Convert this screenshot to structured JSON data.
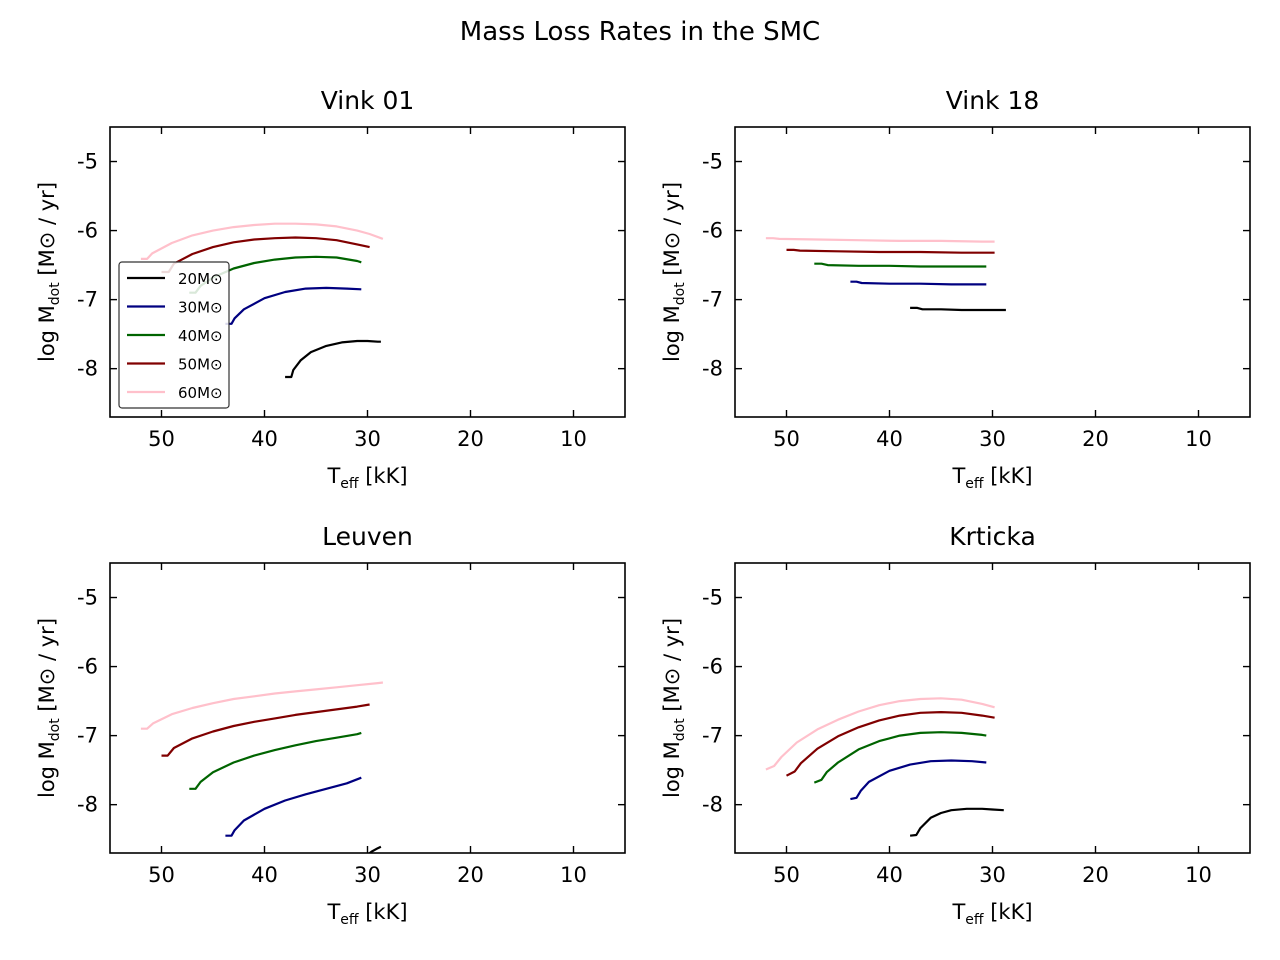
{
  "title": "Mass Loss Rates in the SMC",
  "axis_text": {
    "xlabel_main": "T",
    "xlabel_sub": "eff",
    "xlabel_unit": " [kK]",
    "ylabel_main": "log M",
    "ylabel_sub": "dot",
    "ylabel_unit": " [M⊙ / yr]"
  },
  "chart_data": [
    {
      "type": "line",
      "title": "Vink 01",
      "xlim": [
        55,
        5
      ],
      "ylim": [
        -8.7,
        -4.5
      ],
      "xticks": [
        50,
        40,
        30,
        20,
        10
      ],
      "yticks": [
        -5,
        -6,
        -7,
        -8
      ],
      "legend": "center-left",
      "series": [
        {
          "name": "20M⊙",
          "color": "#000000",
          "x": [
            38.0,
            37.4,
            37.2,
            36.5,
            35.5,
            34.0,
            32.5,
            31.0,
            30.0,
            29.0,
            28.7
          ],
          "y": [
            -8.12,
            -8.12,
            -8.02,
            -7.88,
            -7.76,
            -7.67,
            -7.62,
            -7.6,
            -7.6,
            -7.61,
            -7.61
          ]
        },
        {
          "name": "30M⊙",
          "color": "#000080",
          "x": [
            43.8,
            43.2,
            42.9,
            42.0,
            40.0,
            38.0,
            36.0,
            34.0,
            32.0,
            30.6
          ],
          "y": [
            -7.35,
            -7.35,
            -7.27,
            -7.14,
            -6.98,
            -6.89,
            -6.84,
            -6.83,
            -6.84,
            -6.85
          ]
        },
        {
          "name": "40M⊙",
          "color": "#006400",
          "x": [
            47.3,
            46.7,
            46.2,
            45.0,
            43.0,
            41.0,
            39.0,
            37.0,
            35.0,
            33.0,
            31.0,
            30.6
          ],
          "y": [
            -6.9,
            -6.9,
            -6.8,
            -6.68,
            -6.55,
            -6.47,
            -6.42,
            -6.39,
            -6.38,
            -6.39,
            -6.44,
            -6.46
          ]
        },
        {
          "name": "50M⊙",
          "color": "#800000",
          "x": [
            50.0,
            49.3,
            48.8,
            47.0,
            45.0,
            43.0,
            41.0,
            39.0,
            37.0,
            35.0,
            33.0,
            31.0,
            29.8
          ],
          "y": [
            -6.6,
            -6.6,
            -6.48,
            -6.34,
            -6.24,
            -6.17,
            -6.13,
            -6.11,
            -6.1,
            -6.11,
            -6.14,
            -6.2,
            -6.24
          ]
        },
        {
          "name": "60M⊙",
          "color": "#ffc0cb",
          "x": [
            52.0,
            51.4,
            50.9,
            49.0,
            47.0,
            45.0,
            43.0,
            41.0,
            39.0,
            37.0,
            35.0,
            33.0,
            31.0,
            29.8,
            28.5
          ],
          "y": [
            -6.41,
            -6.41,
            -6.33,
            -6.18,
            -6.07,
            -6.0,
            -5.95,
            -5.92,
            -5.9,
            -5.9,
            -5.91,
            -5.94,
            -6.0,
            -6.05,
            -6.12
          ]
        }
      ]
    },
    {
      "type": "line",
      "title": "Vink 18",
      "xlim": [
        55,
        5
      ],
      "ylim": [
        -8.7,
        -4.5
      ],
      "xticks": [
        50,
        40,
        30,
        20,
        10
      ],
      "yticks": [
        -5,
        -6,
        -7,
        -8
      ],
      "series": [
        {
          "name": "20M⊙",
          "color": "#000000",
          "x": [
            38.0,
            37.3,
            36.8,
            35.0,
            33.0,
            31.0,
            29.0,
            28.7
          ],
          "y": [
            -7.12,
            -7.12,
            -7.14,
            -7.14,
            -7.15,
            -7.15,
            -7.15,
            -7.15
          ]
        },
        {
          "name": "30M⊙",
          "color": "#000080",
          "x": [
            43.8,
            43.2,
            42.7,
            40.0,
            37.0,
            34.0,
            31.0,
            30.6
          ],
          "y": [
            -6.74,
            -6.74,
            -6.76,
            -6.77,
            -6.77,
            -6.78,
            -6.78,
            -6.78
          ]
        },
        {
          "name": "40M⊙",
          "color": "#006400",
          "x": [
            47.3,
            46.6,
            46.0,
            43.0,
            40.0,
            37.0,
            34.0,
            31.0,
            30.6
          ],
          "y": [
            -6.48,
            -6.48,
            -6.5,
            -6.51,
            -6.51,
            -6.52,
            -6.52,
            -6.52,
            -6.52
          ]
        },
        {
          "name": "50M⊙",
          "color": "#800000",
          "x": [
            50.0,
            49.3,
            48.7,
            45.0,
            41.0,
            37.0,
            33.0,
            29.8
          ],
          "y": [
            -6.28,
            -6.28,
            -6.29,
            -6.3,
            -6.31,
            -6.31,
            -6.32,
            -6.32
          ]
        },
        {
          "name": "60M⊙",
          "color": "#ffc0cb",
          "x": [
            52.0,
            51.3,
            50.7,
            47.0,
            43.0,
            39.0,
            35.0,
            31.0,
            29.8
          ],
          "y": [
            -6.11,
            -6.11,
            -6.12,
            -6.13,
            -6.14,
            -6.15,
            -6.15,
            -6.16,
            -6.16
          ]
        }
      ]
    },
    {
      "type": "line",
      "title": "Leuven",
      "xlim": [
        55,
        5
      ],
      "ylim": [
        -8.7,
        -4.5
      ],
      "xticks": [
        50,
        40,
        30,
        20,
        10
      ],
      "yticks": [
        -5,
        -6,
        -7,
        -8
      ],
      "series": [
        {
          "name": "20M⊙",
          "color": "#000000",
          "x": [
            30.2,
            29.6,
            29.0,
            28.7
          ],
          "y": [
            -8.75,
            -8.68,
            -8.63,
            -8.61
          ]
        },
        {
          "name": "30M⊙",
          "color": "#000080",
          "x": [
            43.8,
            43.2,
            42.9,
            42.0,
            40.0,
            38.0,
            36.0,
            34.0,
            32.0,
            30.6
          ],
          "y": [
            -8.45,
            -8.45,
            -8.37,
            -8.23,
            -8.06,
            -7.94,
            -7.85,
            -7.77,
            -7.69,
            -7.61
          ]
        },
        {
          "name": "40M⊙",
          "color": "#006400",
          "x": [
            47.3,
            46.7,
            46.2,
            45.0,
            43.0,
            41.0,
            39.0,
            37.0,
            35.0,
            33.0,
            31.0,
            30.6
          ],
          "y": [
            -7.77,
            -7.77,
            -7.67,
            -7.53,
            -7.39,
            -7.29,
            -7.21,
            -7.14,
            -7.08,
            -7.03,
            -6.98,
            -6.96
          ]
        },
        {
          "name": "50M⊙",
          "color": "#800000",
          "x": [
            50.0,
            49.4,
            48.8,
            47.0,
            45.0,
            43.0,
            41.0,
            39.0,
            37.0,
            35.0,
            33.0,
            31.0,
            29.8
          ],
          "y": [
            -7.29,
            -7.29,
            -7.18,
            -7.04,
            -6.94,
            -6.86,
            -6.8,
            -6.75,
            -6.7,
            -6.66,
            -6.62,
            -6.58,
            -6.55
          ]
        },
        {
          "name": "60M⊙",
          "color": "#ffc0cb",
          "x": [
            52.0,
            51.4,
            50.8,
            49.0,
            47.0,
            45.0,
            43.0,
            41.0,
            39.0,
            37.0,
            35.0,
            33.0,
            31.0,
            29.0,
            28.5
          ],
          "y": [
            -6.9,
            -6.9,
            -6.82,
            -6.69,
            -6.6,
            -6.53,
            -6.47,
            -6.43,
            -6.39,
            -6.36,
            -6.33,
            -6.3,
            -6.27,
            -6.24,
            -6.23
          ]
        }
      ]
    },
    {
      "type": "line",
      "title": "Krticka",
      "xlim": [
        55,
        5
      ],
      "ylim": [
        -8.7,
        -4.5
      ],
      "xticks": [
        50,
        40,
        30,
        20,
        10
      ],
      "yticks": [
        -5,
        -6,
        -7,
        -8
      ],
      "series": [
        {
          "name": "20M⊙",
          "color": "#000000",
          "x": [
            38.0,
            37.4,
            37.0,
            36.0,
            35.0,
            34.0,
            32.5,
            31.0,
            30.0,
            28.9
          ],
          "y": [
            -8.45,
            -8.44,
            -8.34,
            -8.19,
            -8.12,
            -8.08,
            -8.06,
            -8.06,
            -8.07,
            -8.08
          ]
        },
        {
          "name": "30M⊙",
          "color": "#000080",
          "x": [
            43.8,
            43.2,
            42.8,
            42.0,
            40.0,
            38.0,
            36.0,
            34.0,
            32.0,
            30.6
          ],
          "y": [
            -7.92,
            -7.9,
            -7.8,
            -7.67,
            -7.51,
            -7.42,
            -7.37,
            -7.36,
            -7.37,
            -7.39
          ]
        },
        {
          "name": "40M⊙",
          "color": "#006400",
          "x": [
            47.3,
            46.6,
            46.1,
            45.0,
            43.0,
            41.0,
            39.0,
            37.0,
            35.0,
            33.0,
            31.0,
            30.6
          ],
          "y": [
            -7.68,
            -7.64,
            -7.53,
            -7.39,
            -7.2,
            -7.08,
            -7.0,
            -6.96,
            -6.95,
            -6.96,
            -6.99,
            -7.0
          ]
        },
        {
          "name": "50M⊙",
          "color": "#800000",
          "x": [
            50.0,
            49.2,
            48.6,
            47.0,
            45.0,
            43.0,
            41.0,
            39.0,
            37.0,
            35.0,
            33.0,
            31.0,
            29.8
          ],
          "y": [
            -7.58,
            -7.52,
            -7.4,
            -7.19,
            -7.01,
            -6.88,
            -6.78,
            -6.71,
            -6.67,
            -6.66,
            -6.67,
            -6.71,
            -6.74
          ]
        },
        {
          "name": "60M⊙",
          "color": "#ffc0cb",
          "x": [
            52.0,
            51.2,
            50.5,
            49.0,
            47.0,
            45.0,
            43.0,
            41.0,
            39.0,
            37.0,
            35.0,
            33.0,
            31.0,
            29.8
          ],
          "y": [
            -7.49,
            -7.44,
            -7.31,
            -7.1,
            -6.91,
            -6.77,
            -6.65,
            -6.56,
            -6.5,
            -6.47,
            -6.46,
            -6.48,
            -6.54,
            -6.59
          ]
        }
      ]
    }
  ]
}
